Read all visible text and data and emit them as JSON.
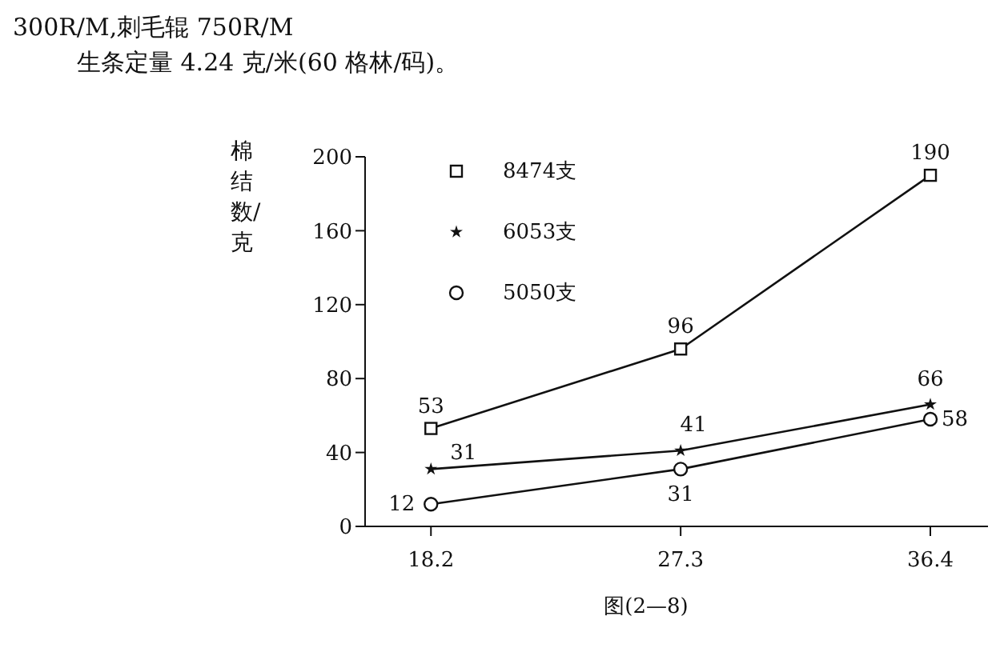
{
  "chart_data": {
    "type": "line",
    "title": "300R/M,刺毛辊 750R/M",
    "subtitle": "生条定量 4.24 克/米(60 格林/码)。",
    "ylabel": "棉结数/克",
    "annotations": [
      "图(2—8)"
    ],
    "x": [
      18.2,
      27.3,
      36.4
    ],
    "xlim": [
      15.8,
      38.5
    ],
    "xticks": [
      18.2,
      27.3,
      36.4
    ],
    "ylim": [
      0,
      200
    ],
    "yticks": [
      0,
      40,
      80,
      120,
      160,
      200
    ],
    "grid": false,
    "legend": "top",
    "line_style": "solid",
    "data_labels": true,
    "series": [
      {
        "name": "8474支",
        "color": "#111111",
        "marker": "square",
        "values": [
          53,
          96,
          190
        ]
      },
      {
        "name": "6053支",
        "color": "#111111",
        "marker": "star",
        "values": [
          31,
          41,
          66
        ]
      },
      {
        "name": "5050支",
        "color": "#111111",
        "marker": "circle",
        "values": [
          12,
          31,
          58
        ]
      }
    ]
  }
}
